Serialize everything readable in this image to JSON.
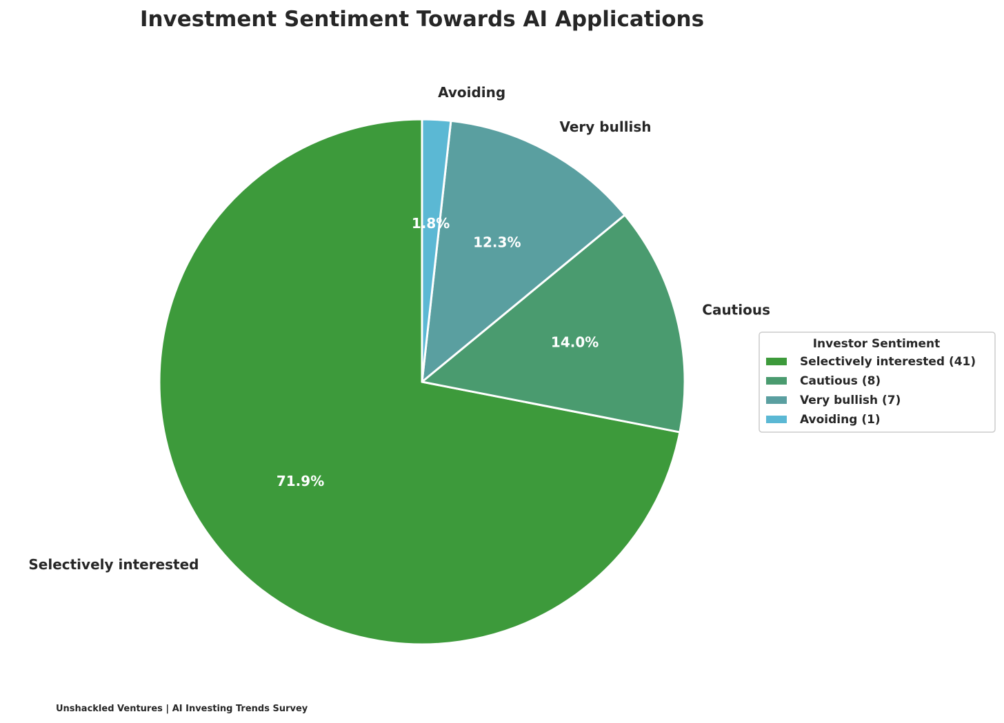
{
  "chart_data": {
    "type": "pie",
    "title": "Investment Sentiment Towards AI Applications",
    "start_angle": "top, counter-clockwise",
    "slices": [
      {
        "label": "Selectively interested",
        "value": 41,
        "percent": "71.9%",
        "color": "#3d9a3b",
        "legend": "Selectively interested (41)"
      },
      {
        "label": "Cautious",
        "value": 8,
        "percent": "14.0%",
        "color": "#4a9b6f",
        "legend": "Cautious (8)"
      },
      {
        "label": "Very bullish",
        "value": 7,
        "percent": "12.3%",
        "color": "#5a9fa0",
        "legend": "Very bullish (7)"
      },
      {
        "label": "Avoiding",
        "value": 1,
        "percent": "1.8%",
        "color": "#5bb8d4",
        "legend": "Avoiding (1)"
      }
    ],
    "legend": {
      "title": "Investor Sentiment",
      "placement": "right"
    }
  },
  "footer": "Unshackled Ventures | AI Investing Trends Survey"
}
